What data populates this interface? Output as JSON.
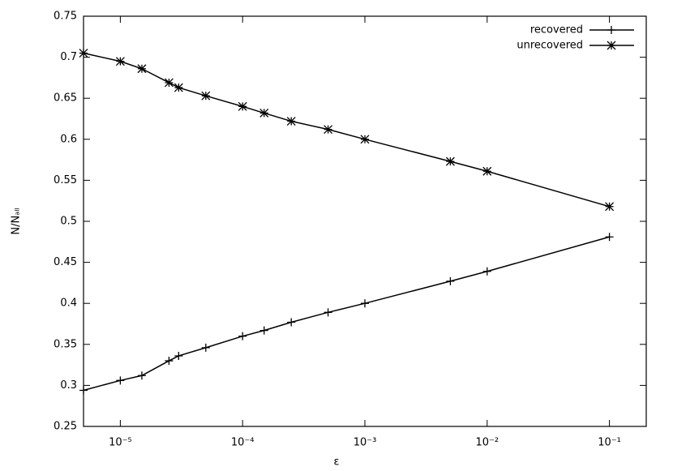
{
  "chart_data": {
    "type": "line",
    "x_label": "ε",
    "y_label": "N/Nₐₗₗ",
    "x": [
      5e-06,
      1e-05,
      1.5e-05,
      2.5e-05,
      3e-05,
      5e-05,
      0.0001,
      0.00015,
      0.00025,
      0.0005,
      0.001,
      0.005,
      0.01,
      0.1
    ],
    "series": [
      {
        "name": "recovered",
        "color": "#000000",
        "marker": "plus",
        "values": [
          0.294,
          0.306,
          0.312,
          0.33,
          0.336,
          0.346,
          0.36,
          0.367,
          0.377,
          0.389,
          0.4,
          0.427,
          0.439,
          0.481
        ]
      },
      {
        "name": "unrecovered",
        "color": "#000000",
        "marker": "star",
        "values": [
          0.705,
          0.695,
          0.686,
          0.669,
          0.663,
          0.653,
          0.64,
          0.632,
          0.622,
          0.612,
          0.6,
          0.573,
          0.561,
          0.518
        ]
      }
    ],
    "xscale": "log",
    "xlim": [
      5e-06,
      0.2
    ],
    "xticks": [
      {
        "value": 1e-05,
        "label": "10⁻⁵"
      },
      {
        "value": 0.0001,
        "label": "10⁻⁴"
      },
      {
        "value": 0.001,
        "label": "10⁻³"
      },
      {
        "value": 0.01,
        "label": "10⁻²"
      },
      {
        "value": 0.1,
        "label": "10⁻¹"
      }
    ],
    "ylim": [
      0.25,
      0.75
    ],
    "yticks": [
      0.25,
      0.3,
      0.35,
      0.4,
      0.45,
      0.5,
      0.55,
      0.6,
      0.65,
      0.7,
      0.75
    ],
    "grid": false,
    "legend": "top-right"
  }
}
